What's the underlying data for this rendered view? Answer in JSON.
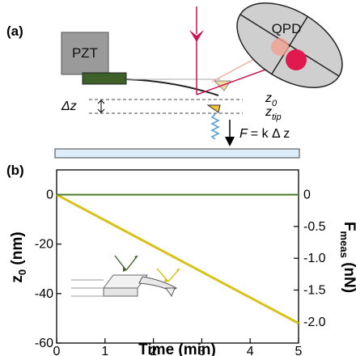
{
  "figure": {
    "panel_a": {
      "label": "(a)",
      "pzt_label": "PZT",
      "qpd_label": "QPD",
      "dz_label": "Δz",
      "z0_label": "z",
      "z0_sub": "0",
      "ztip_label": "z",
      "ztip_sub": "tip",
      "force_eq_lhs": "F",
      "force_eq_rhs": "= k Δ z",
      "colors": {
        "pzt_fill": "#9a9a9a",
        "base_fill": "#3d6128",
        "laser": "#cc1155",
        "qpd_fill": "#cfcfcf",
        "tip_fill": "#f2c23c",
        "substrate": "#dcecf8",
        "spring": "#5aa0d8"
      }
    },
    "panel_b": {
      "label": "(b)"
    }
  },
  "chart_data": {
    "type": "line",
    "xlabel": "Time (min)",
    "ylabel": "z",
    "ylabel_sub": "0",
    "ylabel_unit": " (nm)",
    "y2label": "F",
    "y2label_sub": "meas",
    "y2label_unit": " (nN)",
    "xlim": [
      0,
      5
    ],
    "ylim": [
      -60,
      10
    ],
    "y2lim": [
      -2.333,
      0.389
    ],
    "xticks": [
      "0",
      "1",
      "2",
      "3",
      "4",
      "5"
    ],
    "yticks": [
      "0",
      "-20",
      "-40",
      "-60"
    ],
    "y2ticks": [
      "0",
      "-0.5",
      "-1.0",
      "-1.5",
      "-2.0"
    ],
    "grid": false,
    "series": [
      {
        "color": "#d8c21a",
        "x": [
          0,
          5
        ],
        "y": [
          0,
          -52
        ]
      },
      {
        "color": "#4a7a2a",
        "x": [
          0,
          5
        ],
        "y": [
          0,
          0
        ]
      }
    ],
    "inset": {
      "arrow_colors": [
        "#3d6128",
        "#d8c21a"
      ]
    }
  }
}
